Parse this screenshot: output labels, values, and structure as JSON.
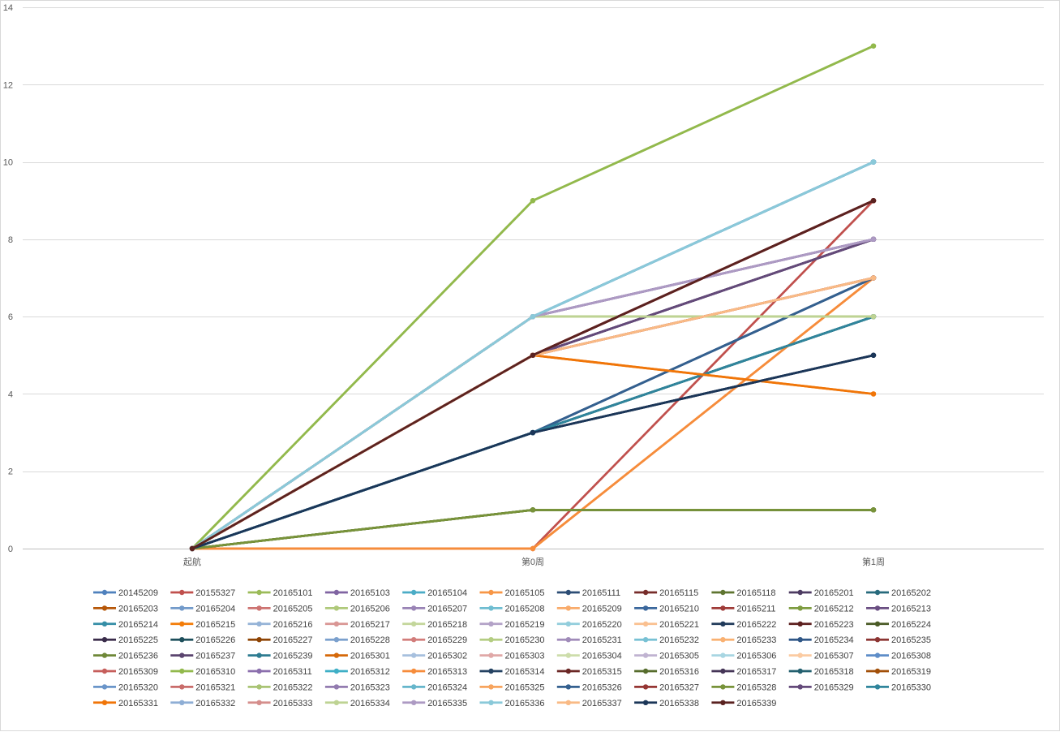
{
  "chart_data": {
    "type": "line",
    "x": [
      "起航",
      "第0周",
      "第1周"
    ],
    "ylim": [
      0,
      14
    ],
    "yticks": [
      0,
      2,
      4,
      6,
      8,
      10,
      12,
      14
    ],
    "grid": "horizontal",
    "legend": "bottom",
    "series": [
      {
        "name": "20145209",
        "color": "#4F81BD",
        "values": [
          0,
          6,
          10
        ]
      },
      {
        "name": "20155327",
        "color": "#C0504D",
        "values": [
          0,
          0,
          9
        ]
      },
      {
        "name": "20165101",
        "color": "#9BBB59",
        "values": [
          0,
          9,
          13
        ]
      },
      {
        "name": "20165103",
        "color": "#8064A2",
        "values": [
          0,
          6,
          8
        ]
      },
      {
        "name": "20165104",
        "color": "#4BACC6",
        "values": [
          0,
          6,
          10
        ]
      },
      {
        "name": "20165105",
        "color": "#F79646",
        "values": [
          0,
          0,
          7
        ]
      },
      {
        "name": "20165111",
        "color": "#2C4D75",
        "values": [
          0,
          3,
          7
        ]
      },
      {
        "name": "20165115",
        "color": "#772C2A",
        "values": [
          0,
          5,
          9
        ]
      },
      {
        "name": "20165118",
        "color": "#5F7530",
        "values": [
          0,
          1,
          1
        ]
      },
      {
        "name": "20165201",
        "color": "#4D3B62",
        "values": [
          0,
          5,
          8
        ]
      },
      {
        "name": "20165202",
        "color": "#276A7C",
        "values": [
          0,
          3,
          6
        ]
      },
      {
        "name": "20165203",
        "color": "#B65708",
        "values": [
          0,
          5,
          7
        ]
      },
      {
        "name": "20165204",
        "color": "#729ACA",
        "values": [
          0,
          6,
          10
        ]
      },
      {
        "name": "20165205",
        "color": "#CD7371",
        "values": [
          0,
          5,
          7
        ]
      },
      {
        "name": "20165206",
        "color": "#AFC97A",
        "values": [
          0,
          6,
          6
        ]
      },
      {
        "name": "20165207",
        "color": "#9983B5",
        "values": [
          0,
          6,
          8
        ]
      },
      {
        "name": "20165208",
        "color": "#6FBDD1",
        "values": [
          0,
          6,
          10
        ]
      },
      {
        "name": "20165209",
        "color": "#F9AB6B",
        "values": [
          0,
          5,
          7
        ]
      },
      {
        "name": "20165210",
        "color": "#3A679C",
        "values": [
          0,
          3,
          7
        ]
      },
      {
        "name": "20165211",
        "color": "#9F3B38",
        "values": [
          0,
          5,
          9
        ]
      },
      {
        "name": "20165212",
        "color": "#7E9C40",
        "values": [
          0,
          6,
          6
        ]
      },
      {
        "name": "20165213",
        "color": "#6A4E82",
        "values": [
          0,
          5,
          8
        ]
      },
      {
        "name": "20165214",
        "color": "#358EA6",
        "values": [
          0,
          3,
          6
        ]
      },
      {
        "name": "20165215",
        "color": "#F37C08",
        "values": [
          0,
          5,
          4
        ]
      },
      {
        "name": "20165216",
        "color": "#95B3D7",
        "values": [
          0,
          6,
          10
        ]
      },
      {
        "name": "20165217",
        "color": "#D99694",
        "values": [
          0,
          5,
          7
        ]
      },
      {
        "name": "20165218",
        "color": "#C3D69B",
        "values": [
          0,
          6,
          6
        ]
      },
      {
        "name": "20165219",
        "color": "#B3A2C7",
        "values": [
          0,
          6,
          8
        ]
      },
      {
        "name": "20165220",
        "color": "#92CDDC",
        "values": [
          0,
          6,
          10
        ]
      },
      {
        "name": "20165221",
        "color": "#FAC090",
        "values": [
          0,
          5,
          7
        ]
      },
      {
        "name": "20165222",
        "color": "#203A5A",
        "values": [
          0,
          3,
          5
        ]
      },
      {
        "name": "20165223",
        "color": "#5C1F1E",
        "values": [
          0,
          5,
          9
        ]
      },
      {
        "name": "20165224",
        "color": "#4A5A25",
        "values": [
          0,
          1,
          1
        ]
      },
      {
        "name": "20165225",
        "color": "#3A2C4A",
        "values": [
          0,
          3,
          5
        ]
      },
      {
        "name": "20165226",
        "color": "#1E4F5C",
        "values": [
          0,
          3,
          6
        ]
      },
      {
        "name": "20165227",
        "color": "#8E4405",
        "values": [
          0,
          5,
          7
        ]
      },
      {
        "name": "20165228",
        "color": "#7BA0CD",
        "values": [
          0,
          6,
          10
        ]
      },
      {
        "name": "20165229",
        "color": "#D27D7B",
        "values": [
          0,
          5,
          7
        ]
      },
      {
        "name": "20165230",
        "color": "#B4CD82",
        "values": [
          0,
          6,
          6
        ]
      },
      {
        "name": "20165231",
        "color": "#A08BB9",
        "values": [
          0,
          6,
          8
        ]
      },
      {
        "name": "20165232",
        "color": "#78C1D4",
        "values": [
          0,
          6,
          10
        ]
      },
      {
        "name": "20165233",
        "color": "#F9B172",
        "values": [
          0,
          5,
          7
        ]
      },
      {
        "name": "20165234",
        "color": "#2F5686",
        "values": [
          0,
          3,
          7
        ]
      },
      {
        "name": "20165235",
        "color": "#8C3432",
        "values": [
          0,
          5,
          9
        ]
      },
      {
        "name": "20165236",
        "color": "#6F8838",
        "values": [
          0,
          1,
          1
        ]
      },
      {
        "name": "20165237",
        "color": "#5B456F",
        "values": [
          0,
          5,
          8
        ]
      },
      {
        "name": "20165239",
        "color": "#2E7C91",
        "values": [
          0,
          3,
          6
        ]
      },
      {
        "name": "20165301",
        "color": "#D5690A",
        "values": [
          0,
          5,
          7
        ]
      },
      {
        "name": "20165302",
        "color": "#A7C0DE",
        "values": [
          0,
          6,
          10
        ]
      },
      {
        "name": "20165303",
        "color": "#E0A8A7",
        "values": [
          0,
          5,
          7
        ]
      },
      {
        "name": "20165304",
        "color": "#CDDDAB",
        "values": [
          0,
          6,
          6
        ]
      },
      {
        "name": "20165305",
        "color": "#C0B3D1",
        "values": [
          0,
          6,
          8
        ]
      },
      {
        "name": "20165306",
        "color": "#A8D6E2",
        "values": [
          0,
          6,
          10
        ]
      },
      {
        "name": "20165307",
        "color": "#FBCBA2",
        "values": [
          0,
          5,
          7
        ]
      },
      {
        "name": "20165308",
        "color": "#5E8DC8",
        "values": [
          0,
          6,
          10
        ]
      },
      {
        "name": "20165309",
        "color": "#C65E5B",
        "values": [
          0,
          5,
          9
        ]
      },
      {
        "name": "20165310",
        "color": "#92B94C",
        "values": [
          0,
          9,
          13
        ]
      },
      {
        "name": "20165311",
        "color": "#8B6FAD",
        "values": [
          0,
          6,
          8
        ]
      },
      {
        "name": "20165312",
        "color": "#3EAFC6",
        "values": [
          0,
          6,
          10
        ]
      },
      {
        "name": "20165313",
        "color": "#F68C3B",
        "values": [
          0,
          0,
          7
        ]
      },
      {
        "name": "20165314",
        "color": "#244262",
        "values": [
          0,
          3,
          5
        ]
      },
      {
        "name": "20165315",
        "color": "#6B2725",
        "values": [
          0,
          5,
          9
        ]
      },
      {
        "name": "20165316",
        "color": "#566C2C",
        "values": [
          0,
          1,
          1
        ]
      },
      {
        "name": "20165317",
        "color": "#453557",
        "values": [
          0,
          5,
          8
        ]
      },
      {
        "name": "20165318",
        "color": "#23606F",
        "values": [
          0,
          3,
          6
        ]
      },
      {
        "name": "20165319",
        "color": "#A24F08",
        "values": [
          0,
          5,
          7
        ]
      },
      {
        "name": "20165320",
        "color": "#6A95C9",
        "values": [
          0,
          6,
          10
        ]
      },
      {
        "name": "20165321",
        "color": "#C96C6A",
        "values": [
          0,
          5,
          7
        ]
      },
      {
        "name": "20165322",
        "color": "#A9C474",
        "values": [
          0,
          6,
          6
        ]
      },
      {
        "name": "20165323",
        "color": "#937CB0",
        "values": [
          0,
          6,
          8
        ]
      },
      {
        "name": "20165324",
        "color": "#66B6CB",
        "values": [
          0,
          6,
          10
        ]
      },
      {
        "name": "20165325",
        "color": "#F7A45E",
        "values": [
          0,
          5,
          7
        ]
      },
      {
        "name": "20165326",
        "color": "#34608F",
        "values": [
          0,
          3,
          7
        ]
      },
      {
        "name": "20165327",
        "color": "#963634",
        "values": [
          0,
          5,
          9
        ]
      },
      {
        "name": "20165328",
        "color": "#78933A",
        "values": [
          0,
          1,
          1
        ]
      },
      {
        "name": "20165329",
        "color": "#644A7A",
        "values": [
          0,
          5,
          8
        ]
      },
      {
        "name": "20165330",
        "color": "#30859C",
        "values": [
          0,
          3,
          6
        ]
      },
      {
        "name": "20165331",
        "color": "#F07508",
        "values": [
          0,
          5,
          4
        ]
      },
      {
        "name": "20165332",
        "color": "#8EAED5",
        "values": [
          0,
          6,
          10
        ]
      },
      {
        "name": "20165333",
        "color": "#D58E8C",
        "values": [
          0,
          5,
          7
        ]
      },
      {
        "name": "20165334",
        "color": "#BED393",
        "values": [
          0,
          6,
          6
        ]
      },
      {
        "name": "20165335",
        "color": "#AD9AC3",
        "values": [
          0,
          6,
          8
        ]
      },
      {
        "name": "20165336",
        "color": "#8AC9D9",
        "values": [
          0,
          6,
          10
        ]
      },
      {
        "name": "20165337",
        "color": "#F9BA85",
        "values": [
          0,
          5,
          7
        ]
      },
      {
        "name": "20165338",
        "color": "#1B3658",
        "values": [
          0,
          3,
          5
        ]
      },
      {
        "name": "20165339",
        "color": "#5A2220",
        "values": [
          0,
          5,
          9
        ]
      }
    ]
  }
}
